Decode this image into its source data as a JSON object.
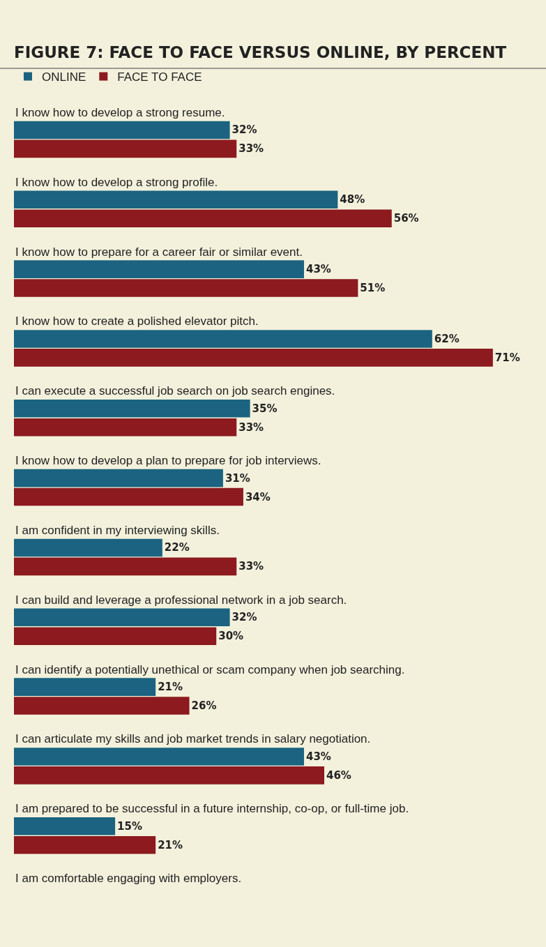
{
  "chart_data": {
    "type": "bar",
    "orientation": "horizontal",
    "title": "FIGURE 7: FACE TO FACE VERSUS ONLINE, BY PERCENT",
    "categories": [
      "I know how to develop a strong resume.",
      "I know how to develop a strong profile.",
      "I know how to prepare for a career fair or similar event.",
      "I know how to create a polished elevator pitch.",
      "I can execute a successful job search on job search engines.",
      "I know how to develop a plan to prepare for job interviews.",
      "I am confident in my interviewing skills.",
      "I can build and leverage a professional network in a job search.",
      "I can identify a potentially unethical or scam company when job searching.",
      "I can articulate my skills and job market trends in salary negotiation.",
      "I am prepared to be successful in a future internship, co-op, or full-time job.",
      "I am comfortable engaging with employers."
    ],
    "series": [
      {
        "name": "ONLINE",
        "color": "#1b6380",
        "values": [
          32,
          48,
          43,
          62,
          35,
          31,
          22,
          32,
          21,
          43,
          15,
          null
        ],
        "value_labels": [
          "32%",
          "48%",
          "43%",
          "62%",
          "35%",
          "31%",
          "22%",
          "32%",
          "21%",
          "43%",
          "15%",
          null
        ]
      },
      {
        "name": "FACE TO FACE",
        "color": "#8c1a1f",
        "values": [
          33,
          56,
          51,
          71,
          33,
          34,
          33,
          30,
          26,
          46,
          21,
          null
        ],
        "value_labels": [
          "33%",
          "56%",
          "51%",
          "71%",
          "33%",
          "34%",
          "33%",
          "30%",
          "26%",
          "46%",
          "21%",
          null
        ]
      }
    ],
    "tick_labels": false,
    "grid": false,
    "legend": "top left"
  }
}
